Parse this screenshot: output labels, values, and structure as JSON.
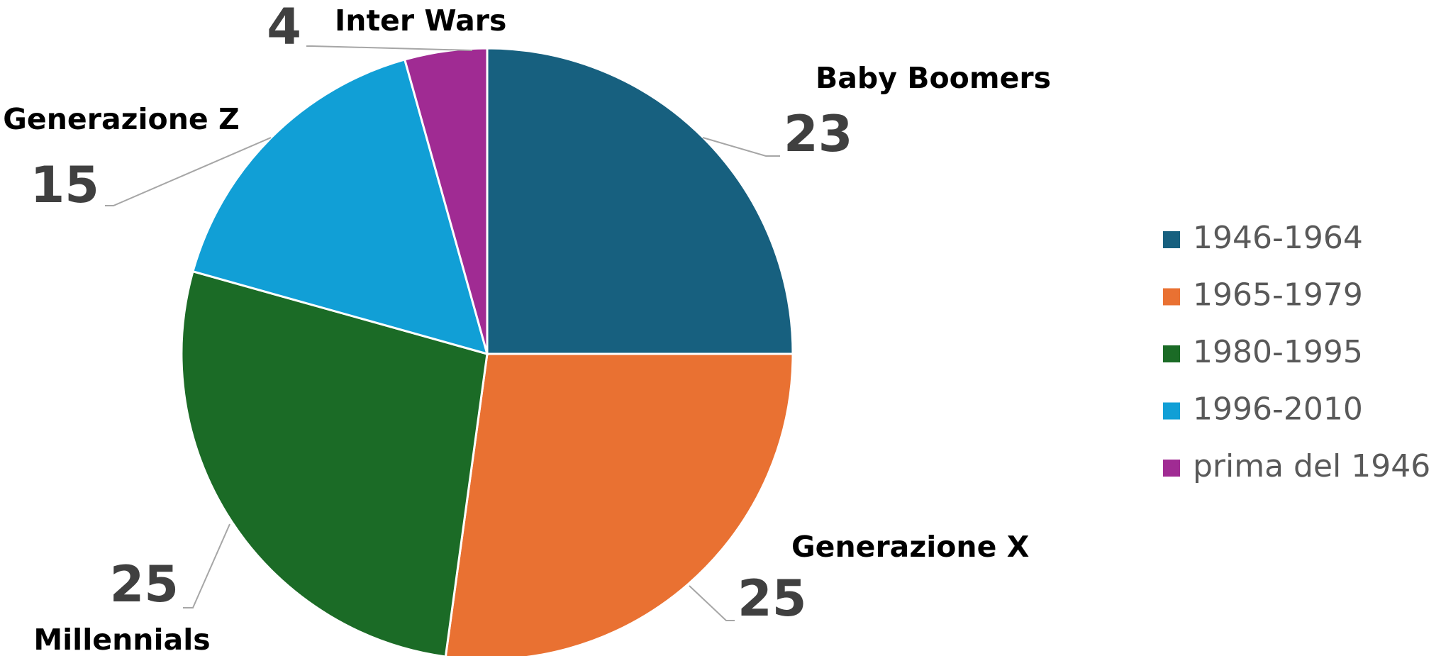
{
  "chart_data": {
    "type": "pie",
    "categories": [
      "1946-1964",
      "1965-1979",
      "1980-1995",
      "1996-2010",
      "prima del 1946"
    ],
    "labels": [
      "Baby Boomers",
      "Generazione X",
      "Millennials",
      "Generazione Z",
      "Inter Wars"
    ],
    "values": [
      23,
      25,
      25,
      15,
      4
    ],
    "colors": [
      "#17607f",
      "#e97132",
      "#1b6b26",
      "#119fd6",
      "#a02b93"
    ],
    "legend": "right"
  }
}
